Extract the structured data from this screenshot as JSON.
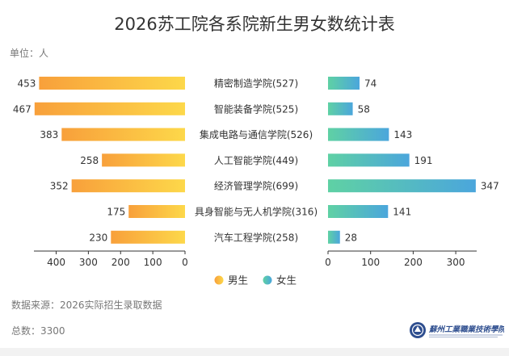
{
  "title": "2026苏工院各系院新生男女数统计表",
  "unit_label": "单位：人",
  "source_note": "数据来源：2026实际招生录取数据",
  "total_note": "总数：3300",
  "logo_text": "蘇州工業職業技術學院",
  "chart_data": {
    "type": "bar",
    "orientation": "horizontal-butterfly",
    "title": "2026苏工院各系院新生男女数统计表",
    "categories": [
      "精密制造学院(527)",
      "智能装备学院(525)",
      "集成电路与通信学院(526)",
      "人工智能学院(449)",
      "经济管理学院(699)",
      "具身智能与无人机学院(316)",
      "汽车工程学院(258)"
    ],
    "series": [
      {
        "name": "男生",
        "values": [
          453,
          467,
          383,
          258,
          352,
          175,
          230
        ],
        "color_start": "#fdd84a",
        "color_end": "#f8a03b"
      },
      {
        "name": "女生",
        "values": [
          74,
          58,
          143,
          191,
          347,
          141,
          28
        ],
        "color_start": "#5fd1a4",
        "color_end": "#4ba6dc"
      }
    ],
    "left_axis": {
      "ticks": [
        "400",
        "300",
        "200",
        "100",
        "0"
      ],
      "tick_values": [
        400,
        300,
        200,
        100,
        0
      ],
      "range": [
        0,
        460
      ]
    },
    "right_axis": {
      "ticks": [
        "0",
        "100",
        "200",
        "300"
      ],
      "tick_values": [
        0,
        100,
        200,
        300
      ],
      "range": [
        0,
        340
      ]
    },
    "legend_position": "bottom-center",
    "grid": false
  }
}
